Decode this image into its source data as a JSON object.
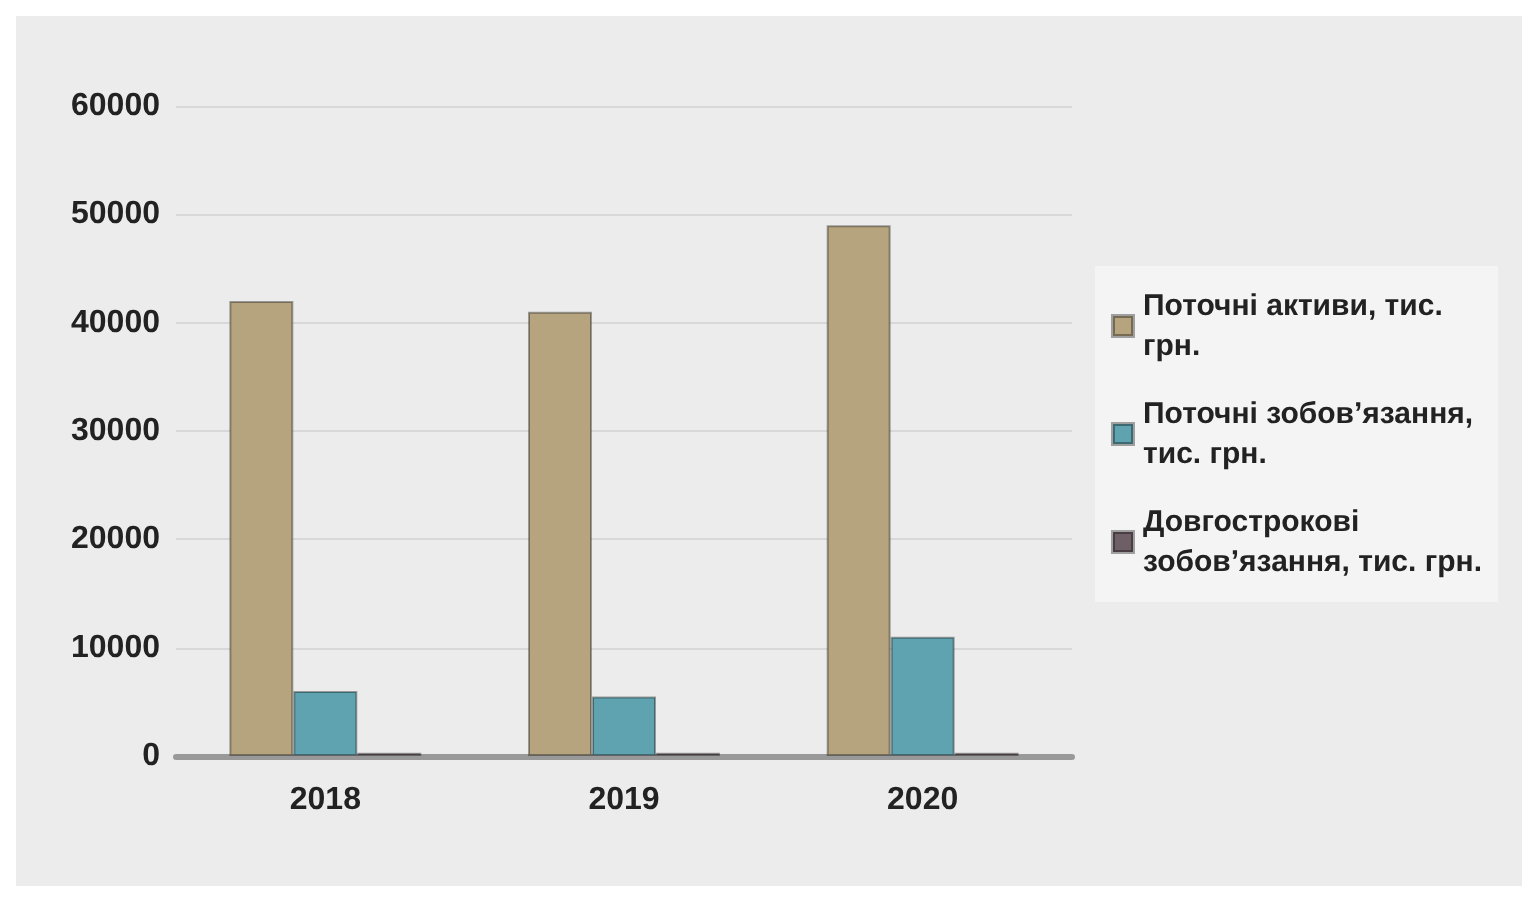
{
  "chart_data": {
    "type": "bar",
    "categories": [
      "2018",
      "2019",
      "2020"
    ],
    "series": [
      {
        "name": "Поточні активи, тис. грн.",
        "color": "#b5a47e",
        "values": [
          42000,
          41000,
          49000
        ]
      },
      {
        "name": "Поточні зобов’язання, тис. грн.",
        "color": "#5fa3b0",
        "values": [
          6000,
          5500,
          11000
        ]
      },
      {
        "name": "Довгострокові зобов’язання, тис. грн.",
        "color": "#6e5f66",
        "values": [
          300,
          300,
          300
        ]
      }
    ],
    "ylim": [
      0,
      60000
    ],
    "yticks": [
      0,
      10000,
      20000,
      30000,
      40000,
      50000,
      60000
    ],
    "grid": "y",
    "legend": "right"
  }
}
